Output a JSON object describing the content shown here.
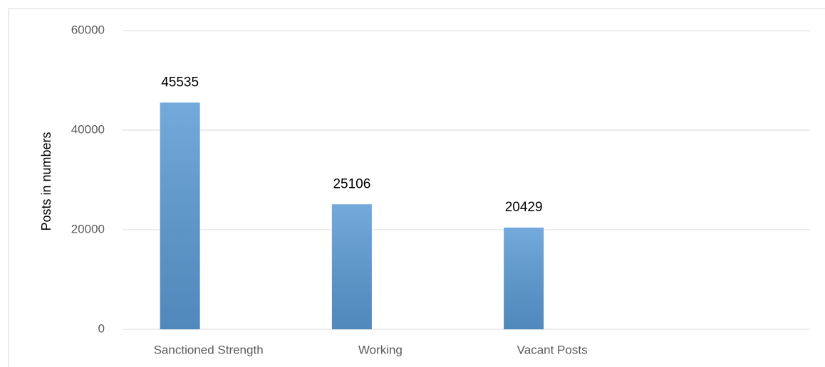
{
  "chart_data": {
    "type": "bar",
    "y_label": "Posts in numbers",
    "categories": [
      "Sanctioned Strength",
      "Working",
      "Vacant Posts",
      null
    ],
    "values": [
      45535,
      25106,
      20429,
      null
    ],
    "color": "#5b9bd5",
    "ylim": [
      0,
      60000
    ],
    "yticks": [
      0,
      20000,
      40000,
      60000
    ],
    "grid": true
  }
}
